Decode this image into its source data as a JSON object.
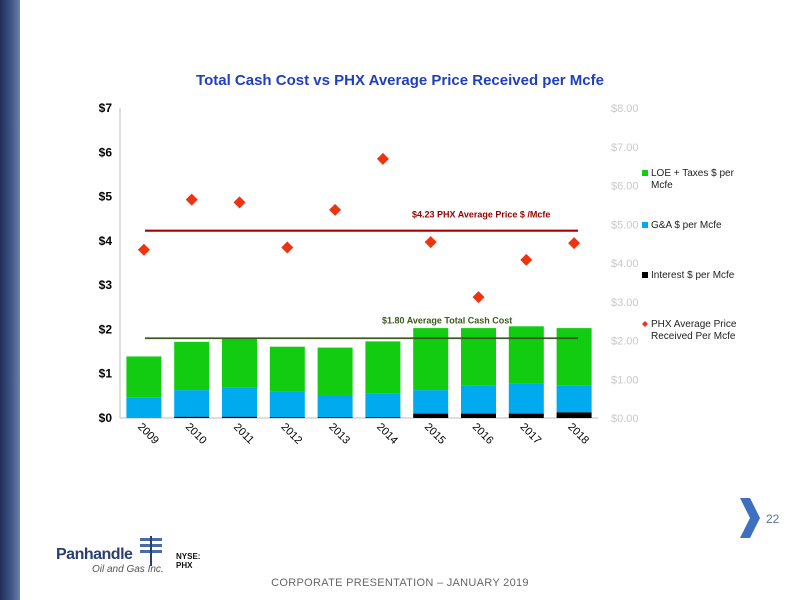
{
  "slide": {
    "page_number": "22",
    "footer": "CORPORATE PRESENTATION – JANUARY 2019",
    "logo_name": "Panhandle",
    "logo_sub": "Oil and Gas Inc.",
    "ticker": "NYSE: PHX"
  },
  "colors": {
    "loe": "#11cc11",
    "ga": "#00aaee",
    "interest": "#000000",
    "price": "#ee3311",
    "avg_price_line": "#aa0000",
    "avg_cost_line": "#3b5a1d",
    "title": "#1f3fbf",
    "side_bar": "#3f5587"
  },
  "chart_data": {
    "type": "bar",
    "stacked": true,
    "title": "Total Cash Cost vs PHX Average Price Received per Mcfe",
    "categories": [
      "2009",
      "2010",
      "2011",
      "2012",
      "2013",
      "2014",
      "2015",
      "2016",
      "2017",
      "2018"
    ],
    "series": [
      {
        "name": "Interest $ per Mcfe",
        "type": "bar",
        "values": [
          0.0,
          0.03,
          0.03,
          0.02,
          0.02,
          0.02,
          0.1,
          0.1,
          0.1,
          0.13
        ]
      },
      {
        "name": "G&A $ per Mcfe",
        "type": "bar",
        "values": [
          0.47,
          0.6,
          0.65,
          0.58,
          0.5,
          0.53,
          0.53,
          0.63,
          0.67,
          0.6
        ]
      },
      {
        "name": "LOE + Taxes $ per Mcfe",
        "type": "bar",
        "values": [
          0.92,
          1.09,
          1.12,
          1.01,
          1.07,
          1.18,
          1.4,
          1.3,
          1.3,
          1.3
        ]
      },
      {
        "name": "PHX Average Price Received Per Mcfe",
        "type": "scatter",
        "values": [
          3.8,
          4.93,
          4.87,
          3.85,
          4.7,
          5.85,
          3.97,
          2.73,
          3.57,
          3.95
        ]
      }
    ],
    "reference_lines": [
      {
        "label": "$4.23 PHX Average Price $ /Mcfe",
        "value": 4.23
      },
      {
        "label": "$1.80 Average Total Cash Cost",
        "value": 1.8
      }
    ],
    "y_axis": {
      "ylim": [
        0,
        7
      ],
      "ticks": [
        "$0",
        "$1",
        "$2",
        "$3",
        "$4",
        "$5",
        "$6",
        "$7"
      ]
    },
    "y2_axis": {
      "ylim": [
        0,
        8
      ],
      "ticks": [
        "$0.00",
        "$1.00",
        "$2.00",
        "$3.00",
        "$4.00",
        "$5.00",
        "$6.00",
        "$7.00",
        "$8.00"
      ]
    },
    "legend": "right",
    "grid": false
  }
}
